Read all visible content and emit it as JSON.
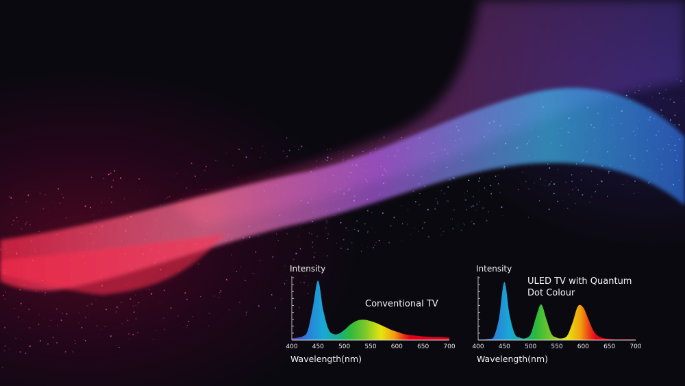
{
  "colors": {
    "spectrum_stops": [
      {
        "nm": 400,
        "color": "#5a3cb8"
      },
      {
        "nm": 430,
        "color": "#2a7fd8"
      },
      {
        "nm": 460,
        "color": "#19a8d6"
      },
      {
        "nm": 490,
        "color": "#16b08a"
      },
      {
        "nm": 510,
        "color": "#2cba3c"
      },
      {
        "nm": 540,
        "color": "#7cc82a"
      },
      {
        "nm": 570,
        "color": "#e8e410"
      },
      {
        "nm": 595,
        "color": "#f0a010"
      },
      {
        "nm": 612,
        "color": "#ec3a14"
      },
      {
        "nm": 625,
        "color": "#e4001a"
      },
      {
        "nm": 700,
        "color": "#e4001a"
      }
    ]
  },
  "chart_data": [
    {
      "type": "area",
      "title": "Conventional TV",
      "xlabel": "Wavelength(nm)",
      "ylabel": "Intensity",
      "xlim": [
        400,
        700
      ],
      "ylim": [
        0,
        1.05
      ],
      "xticks": [
        "400",
        "450",
        "500",
        "550",
        "600",
        "650",
        "700"
      ],
      "grid": false,
      "x": [
        400,
        410,
        420,
        430,
        440,
        450,
        460,
        470,
        480,
        490,
        500,
        510,
        520,
        530,
        540,
        550,
        560,
        570,
        580,
        590,
        600,
        610,
        620,
        630,
        640,
        650,
        660,
        670,
        680,
        690,
        700
      ],
      "values": [
        0.03,
        0.04,
        0.06,
        0.15,
        0.55,
        1.0,
        0.5,
        0.18,
        0.1,
        0.11,
        0.17,
        0.25,
        0.31,
        0.34,
        0.34,
        0.32,
        0.29,
        0.25,
        0.21,
        0.17,
        0.14,
        0.11,
        0.09,
        0.08,
        0.07,
        0.06,
        0.055,
        0.05,
        0.05,
        0.045,
        0.04
      ]
    },
    {
      "type": "area",
      "title": "ULED TV with Quantum Dot Colour",
      "xlabel": "Wavelength(nm)",
      "ylabel": "Intensity",
      "xlim": [
        400,
        700
      ],
      "ylim": [
        0,
        1.05
      ],
      "xticks": [
        "400",
        "450",
        "500",
        "550",
        "600",
        "650",
        "700"
      ],
      "grid": false,
      "x": [
        400,
        410,
        420,
        430,
        440,
        450,
        460,
        470,
        480,
        490,
        500,
        510,
        520,
        530,
        540,
        550,
        560,
        570,
        580,
        590,
        600,
        610,
        620,
        630,
        640,
        650,
        660,
        670,
        680,
        690,
        700
      ],
      "values": [
        0.01,
        0.01,
        0.02,
        0.06,
        0.38,
        0.98,
        0.42,
        0.1,
        0.04,
        0.03,
        0.1,
        0.38,
        0.6,
        0.35,
        0.1,
        0.04,
        0.03,
        0.08,
        0.3,
        0.57,
        0.55,
        0.35,
        0.15,
        0.06,
        0.03,
        0.02,
        0.01,
        0.01,
        0.01,
        0.01,
        0.01
      ]
    }
  ]
}
